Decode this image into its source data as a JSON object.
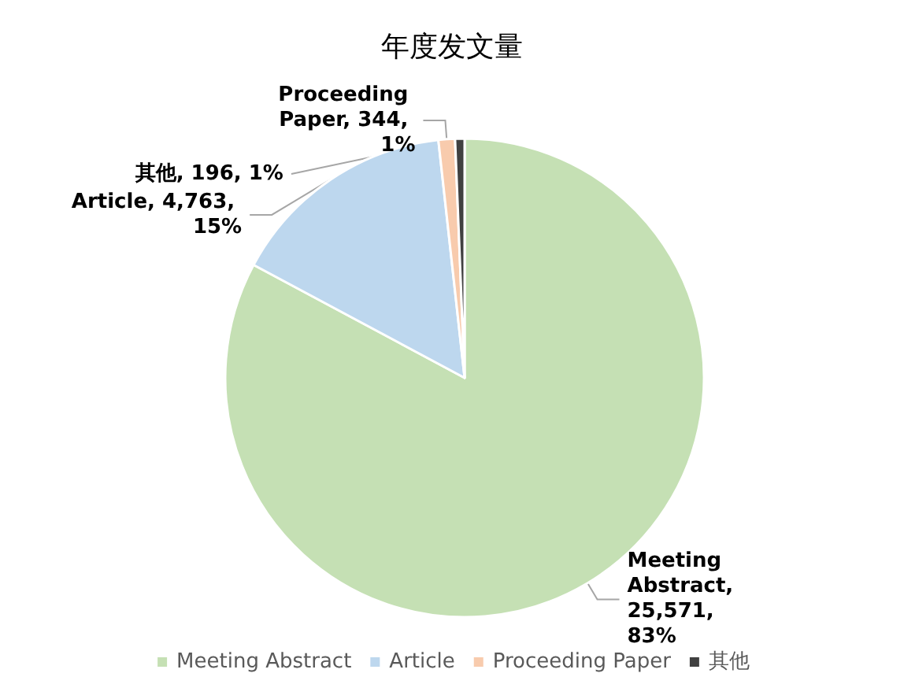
{
  "chart_data": {
    "type": "pie",
    "title": "年度发文量",
    "categories": [
      "Meeting Abstract",
      "Article",
      "Proceeding Paper",
      "其他"
    ],
    "values": [
      25571,
      4763,
      344,
      196
    ],
    "colors": [
      "#c5e0b4",
      "#bdd7ee",
      "#f8cbad",
      "#404040"
    ],
    "value_labels": [
      "Meeting Abstract, 25,571, 83%",
      "Article, 4,763, 15%",
      "Proceeding Paper, 344, 1%",
      "其他, 196, 1%"
    ],
    "legend": "bottom"
  }
}
